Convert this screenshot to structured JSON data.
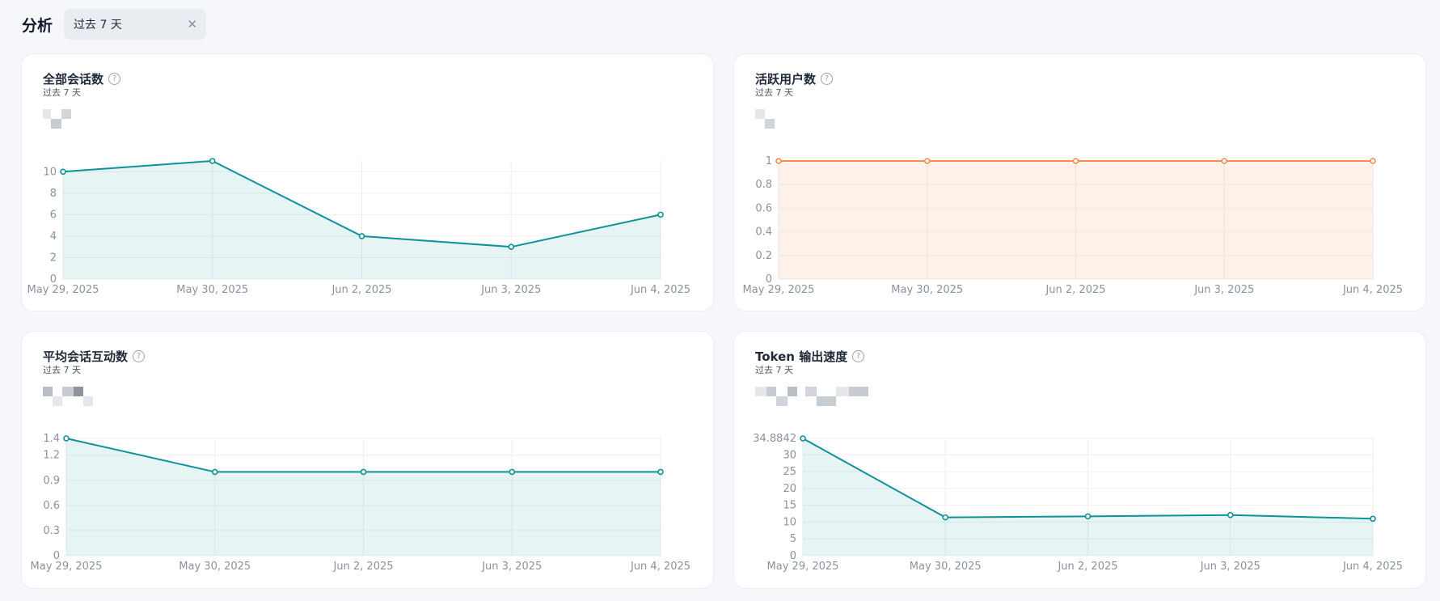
{
  "header": {
    "title": "分析",
    "period": "过去 7 天"
  },
  "colors": {
    "teal": "#0e9297",
    "orange": "#f58c54"
  },
  "charts": [
    {
      "id": "total-conversations",
      "title": "全部会话数",
      "subtitle": "过去 7 天",
      "color": "#0e9297",
      "fill": "rgba(14,146,151,0.10)",
      "x_labels": [
        "May 29, 2025",
        "May 30, 2025",
        "Jun 2, 2025",
        "Jun 3, 2025",
        "Jun 4, 2025"
      ],
      "y_ticks": [
        "0",
        "2",
        "4",
        "6",
        "8",
        "10"
      ],
      "y_tick_values": [
        0,
        2,
        4,
        6,
        8,
        10
      ],
      "ymax": 11,
      "values": [
        10,
        11,
        4,
        3,
        6
      ]
    },
    {
      "id": "active-users",
      "title": "活跃用户数",
      "subtitle": "过去 7 天",
      "color": "#f58c54",
      "fill": "rgba(245,140,84,0.12)",
      "x_labels": [
        "May 29, 2025",
        "May 30, 2025",
        "Jun 2, 2025",
        "Jun 3, 2025",
        "Jun 4, 2025"
      ],
      "y_ticks": [
        "0",
        "0.2",
        "0.4",
        "0.6",
        "0.8",
        "1"
      ],
      "y_tick_values": [
        0,
        0.2,
        0.4,
        0.6,
        0.8,
        1
      ],
      "ymax": 1,
      "values": [
        1,
        1,
        1,
        1,
        1
      ]
    },
    {
      "id": "avg-interactions",
      "title": "平均会话互动数",
      "subtitle": "过去 7 天",
      "color": "#0e9297",
      "fill": "rgba(14,146,151,0.10)",
      "x_labels": [
        "May 29, 2025",
        "May 30, 2025",
        "Jun 2, 2025",
        "Jun 3, 2025",
        "Jun 4, 2025"
      ],
      "y_ticks": [
        "0",
        "0.3",
        "0.6",
        "0.9",
        "1.2",
        "1.4"
      ],
      "y_tick_values": [
        0,
        0.3,
        0.6,
        0.9,
        1.2,
        1.4
      ],
      "ymax": 1.4,
      "values": [
        1.4,
        1,
        1,
        1,
        1
      ]
    },
    {
      "id": "token-speed",
      "title": "Token 输出速度",
      "subtitle": "过去 7 天",
      "color": "#0e9297",
      "fill": "rgba(14,146,151,0.10)",
      "x_labels": [
        "May 29, 2025",
        "May 30, 2025",
        "Jun 2, 2025",
        "Jun 3, 2025",
        "Jun 4, 2025"
      ],
      "y_ticks": [
        "0",
        "5",
        "10",
        "15",
        "20",
        "25",
        "30",
        "34.8842"
      ],
      "y_tick_values": [
        0,
        5,
        10,
        15,
        20,
        25,
        30,
        34.8842
      ],
      "ymax": 34.8842,
      "values": [
        34.8842,
        11.4,
        11.7,
        12.1,
        11.0
      ]
    }
  ],
  "chart_data": [
    {
      "type": "area",
      "title": "全部会话数",
      "categories": [
        "May 29, 2025",
        "May 30, 2025",
        "Jun 2, 2025",
        "Jun 3, 2025",
        "Jun 4, 2025"
      ],
      "values": [
        10,
        11,
        4,
        3,
        6
      ],
      "ylim": [
        0,
        11
      ],
      "grid": true,
      "legend": "none"
    },
    {
      "type": "area",
      "title": "活跃用户数",
      "categories": [
        "May 29, 2025",
        "May 30, 2025",
        "Jun 2, 2025",
        "Jun 3, 2025",
        "Jun 4, 2025"
      ],
      "values": [
        1,
        1,
        1,
        1,
        1
      ],
      "ylim": [
        0,
        1
      ],
      "grid": true,
      "legend": "none"
    },
    {
      "type": "area",
      "title": "平均会话互动数",
      "categories": [
        "May 29, 2025",
        "May 30, 2025",
        "Jun 2, 2025",
        "Jun 3, 2025",
        "Jun 4, 2025"
      ],
      "values": [
        1.4,
        1,
        1,
        1,
        1
      ],
      "ylim": [
        0,
        1.4
      ],
      "grid": true,
      "legend": "none"
    },
    {
      "type": "area",
      "title": "Token 输出速度",
      "categories": [
        "May 29, 2025",
        "May 30, 2025",
        "Jun 2, 2025",
        "Jun 3, 2025",
        "Jun 4, 2025"
      ],
      "values": [
        34.8842,
        11.4,
        11.7,
        12.1,
        11.0
      ],
      "ylim": [
        0,
        34.8842
      ],
      "grid": true,
      "legend": "none"
    }
  ]
}
